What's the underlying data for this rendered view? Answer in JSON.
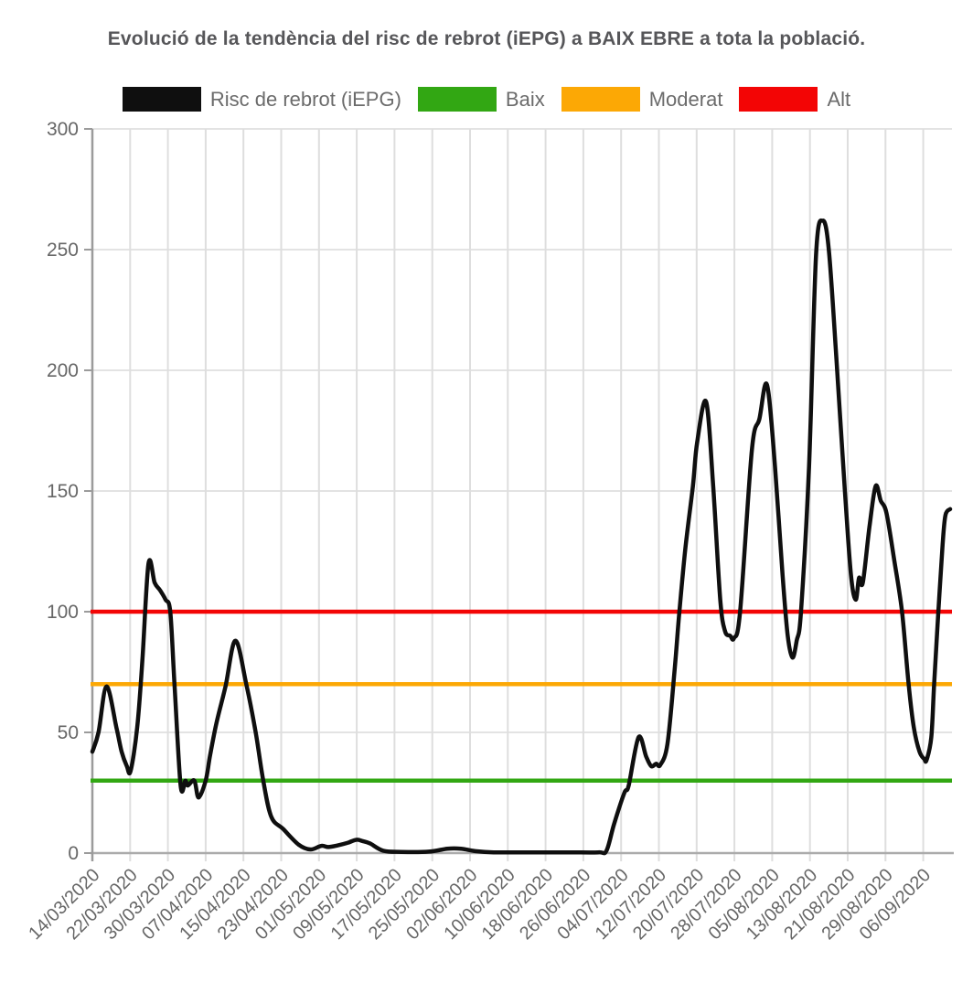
{
  "title": "Evolució de la tendència del risc de rebrot (iEPG) a BAIX EBRE a tota la població.",
  "legend": [
    {
      "label": "Risc de rebrot (iEPG)",
      "color": "#0f0f0f"
    },
    {
      "label": "Baix",
      "color": "#32a713"
    },
    {
      "label": "Moderat",
      "color": "#fca805"
    },
    {
      "label": "Alt",
      "color": "#f30505"
    }
  ],
  "chart_data": {
    "type": "line",
    "title": "Evolució de la tendència del risc de rebrot (iEPG) a BAIX EBRE a tota la població.",
    "xlabel": "",
    "ylabel": "",
    "x_axis": {
      "tick_labels": [
        "14/03/2020",
        "22/03/2020",
        "30/03/2020",
        "07/04/2020",
        "15/04/2020",
        "23/04/2020",
        "01/05/2020",
        "09/05/2020",
        "17/05/2020",
        "25/05/2020",
        "02/06/2020",
        "10/06/2020",
        "18/06/2020",
        "26/06/2020",
        "04/07/2020",
        "12/07/2020",
        "20/07/2020",
        "28/07/2020",
        "05/08/2020",
        "13/08/2020",
        "21/08/2020",
        "29/08/2020",
        "06/09/2020"
      ],
      "tick_interval_days": 8,
      "x_unit": "days since 14/03/2020"
    },
    "y_axis": {
      "min": 0,
      "max": 300,
      "ticks": [
        0,
        50,
        100,
        150,
        200,
        250,
        300
      ]
    },
    "grid": true,
    "legend_position": "top",
    "reference_lines": [
      {
        "label": "Baix",
        "value": 30,
        "color": "#32a713"
      },
      {
        "label": "Moderat",
        "value": 70,
        "color": "#fca805"
      },
      {
        "label": "Alt",
        "value": 100,
        "color": "#f30505"
      }
    ],
    "series": [
      {
        "name": "Risc de rebrot (iEPG)",
        "color": "#0f0f0f",
        "points": [
          [
            0,
            42
          ],
          [
            1.3,
            50
          ],
          [
            3.0,
            69
          ],
          [
            5.1,
            52
          ],
          [
            6.2,
            42
          ],
          [
            7.3,
            36
          ],
          [
            8.1,
            34
          ],
          [
            9.5,
            52
          ],
          [
            10.6,
            80
          ],
          [
            11.9,
            120
          ],
          [
            13.2,
            112
          ],
          [
            14.3,
            109
          ],
          [
            15.5,
            105
          ],
          [
            16.5,
            100
          ],
          [
            17.4,
            70
          ],
          [
            18.7,
            28
          ],
          [
            19.7,
            30
          ],
          [
            20.2,
            28
          ],
          [
            21.6,
            30
          ],
          [
            22.5,
            23
          ],
          [
            24.0,
            30
          ],
          [
            24.9,
            40
          ],
          [
            26.3,
            54
          ],
          [
            28.2,
            69
          ],
          [
            30.3,
            88
          ],
          [
            32.6,
            70
          ],
          [
            34.6,
            50
          ],
          [
            36.2,
            30
          ],
          [
            37.9,
            15
          ],
          [
            40.4,
            10
          ],
          [
            43.7,
            3.5
          ],
          [
            46.2,
            1.5
          ],
          [
            48.5,
            3
          ],
          [
            50.0,
            2.5
          ],
          [
            52.0,
            3.2
          ],
          [
            54.0,
            4.2
          ],
          [
            55.9,
            5.5
          ],
          [
            57.2,
            5
          ],
          [
            58.8,
            4
          ],
          [
            61.6,
            1
          ],
          [
            65.5,
            0.5
          ],
          [
            71.3,
            0.6
          ],
          [
            75.2,
            1.8
          ],
          [
            78.1,
            1.8
          ],
          [
            81.1,
            0.8
          ],
          [
            85.0,
            0.3
          ],
          [
            90.7,
            0.3
          ],
          [
            95.8,
            0.3
          ],
          [
            100.9,
            0.3
          ],
          [
            107.2,
            0.3
          ],
          [
            108.9,
            1
          ],
          [
            110.5,
            12
          ],
          [
            112.7,
            25
          ],
          [
            113.6,
            28
          ],
          [
            115.7,
            48
          ],
          [
            117.3,
            40
          ],
          [
            118.4,
            36
          ],
          [
            119.4,
            37
          ],
          [
            120.3,
            36.5
          ],
          [
            121.8,
            45
          ],
          [
            123.3,
            75
          ],
          [
            124.3,
            99
          ],
          [
            125.6,
            126
          ],
          [
            127.2,
            152
          ],
          [
            128.1,
            170
          ],
          [
            130.0,
            187
          ],
          [
            131.5,
            152
          ],
          [
            133.0,
            105
          ],
          [
            134.0,
            92
          ],
          [
            135.1,
            90
          ],
          [
            135.9,
            89
          ],
          [
            137.2,
            100
          ],
          [
            139.7,
            167
          ],
          [
            141.3,
            180
          ],
          [
            142.9,
            194
          ],
          [
            144.6,
            160
          ],
          [
            146.2,
            115
          ],
          [
            147.3,
            90
          ],
          [
            148.3,
            81
          ],
          [
            149.2,
            88
          ],
          [
            150.1,
            100
          ],
          [
            151.8,
            160
          ],
          [
            153.3,
            248
          ],
          [
            154.7,
            262
          ],
          [
            156.0,
            250
          ],
          [
            157.6,
            205
          ],
          [
            159.4,
            150
          ],
          [
            160.7,
            115
          ],
          [
            161.7,
            105
          ],
          [
            162.4,
            114
          ],
          [
            163.2,
            112
          ],
          [
            164.6,
            135
          ],
          [
            165.9,
            152
          ],
          [
            167.0,
            146
          ],
          [
            168.2,
            141
          ],
          [
            169.8,
            122
          ],
          [
            171.5,
            100
          ],
          [
            172.9,
            70
          ],
          [
            174.0,
            52
          ],
          [
            175.2,
            42
          ],
          [
            176.2,
            39
          ],
          [
            176.7,
            38.5
          ],
          [
            177.7,
            48
          ],
          [
            178.3,
            70
          ],
          [
            179.2,
            100
          ],
          [
            180.1,
            128
          ],
          [
            180.7,
            140
          ],
          [
            181.7,
            142.5
          ]
        ]
      }
    ]
  }
}
